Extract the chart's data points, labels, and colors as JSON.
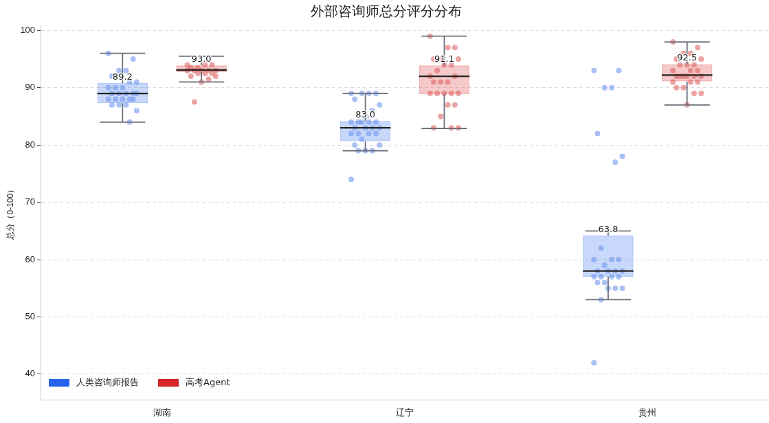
{
  "chart_data": {
    "type": "box",
    "title": "外部咨询师总分评分分布",
    "ylabel": "总分（0-100）",
    "categories": [
      "湖南",
      "辽宁",
      "贵州"
    ],
    "ylim": [
      35.5,
      101
    ],
    "yticks": [
      40,
      50,
      60,
      70,
      80,
      90,
      100
    ],
    "grid": "y",
    "legend": "bottom left",
    "line_style": "dashed",
    "series": [
      {
        "name": "人类咨询师报告",
        "color": "#2563eb",
        "value_labels": [
          "89.2",
          "83.0",
          "63.8"
        ],
        "boxes": [
          {
            "low": 84,
            "q1": 87.3,
            "median": 89,
            "q3": 90.8,
            "high": 96
          },
          {
            "low": 79,
            "q1": 80.7,
            "median": 83,
            "q3": 84.2,
            "high": 89
          },
          {
            "low": 53,
            "q1": 57,
            "median": 58,
            "q3": 64.2,
            "high": 65
          }
        ]
      },
      {
        "name": "高考Agent",
        "color": "#d62728",
        "value_labels": [
          "93.0",
          "91.1",
          "92.5"
        ],
        "boxes": [
          {
            "low": 91,
            "q1": 92.7,
            "median": 93.1,
            "q3": 93.9,
            "high": 95.5
          },
          {
            "low": 82.9,
            "q1": 88.9,
            "median": 92,
            "q3": 93.9,
            "high": 99
          },
          {
            "low": 87,
            "q1": 91.1,
            "median": 92.2,
            "q3": 94.1,
            "high": 98
          }
        ]
      },
      {
        "type": "scatter",
        "color": "#6f97ee",
        "x": [
          "湖南",
          "湖南",
          "湖南",
          "湖南",
          "湖南",
          "湖南",
          "湖南",
          "湖南",
          "湖南",
          "湖南",
          "湖南",
          "湖南",
          "湖南",
          "湖南",
          "湖南",
          "湖南",
          "湖南",
          "湖南",
          "湖南",
          "湖南",
          "湖南",
          "湖南",
          "湖南",
          "湖南",
          "湖南",
          "辽宁",
          "辽宁",
          "辽宁",
          "辽宁",
          "辽宁",
          "辽宁",
          "辽宁",
          "辽宁",
          "辽宁",
          "辽宁",
          "辽宁",
          "辽宁",
          "辽宁",
          "辽宁",
          "辽宁",
          "辽宁",
          "辽宁",
          "辽宁",
          "辽宁",
          "辽宁",
          "辽宁",
          "辽宁",
          "辽宁",
          "辽宁",
          "辽宁",
          "辽宁",
          "辽宁",
          "辽宁",
          "贵州",
          "贵州",
          "贵州",
          "贵州",
          "贵州",
          "贵州",
          "贵州",
          "贵州",
          "贵州",
          "贵州",
          "贵州",
          "贵州",
          "贵州",
          "贵州",
          "贵州",
          "贵州",
          "贵州",
          "贵州",
          "贵州",
          "贵州",
          "贵州",
          "贵州",
          "贵州",
          "贵州",
          "贵州",
          "贵州",
          "贵州",
          "贵州"
        ],
        "values": [
          96,
          95,
          93,
          93,
          92,
          91,
          91,
          90,
          90,
          90,
          89,
          89,
          89,
          89,
          89,
          88,
          88,
          88,
          88,
          88,
          87,
          87,
          87,
          86,
          84,
          89,
          89,
          89,
          89,
          88,
          87,
          86,
          85,
          84,
          84,
          84,
          84,
          84,
          83,
          83,
          83,
          83,
          82,
          82,
          82,
          82,
          81,
          80,
          80,
          79,
          79,
          79,
          74,
          93,
          93,
          90,
          90,
          82,
          78,
          77,
          65,
          62,
          60,
          60,
          60,
          59,
          58,
          58,
          58,
          58,
          57,
          57,
          57,
          57,
          56,
          56,
          55,
          55,
          55,
          53,
          42
        ]
      },
      {
        "type": "scatter",
        "color": "#e06666",
        "x": [
          "湖南",
          "湖南",
          "湖南",
          "湖南",
          "湖南",
          "湖南",
          "湖南",
          "湖南",
          "湖南",
          "湖南",
          "湖南",
          "湖南",
          "湖南",
          "湖南",
          "湖南",
          "湖南",
          "湖南",
          "湖南",
          "辽宁",
          "辽宁",
          "辽宁",
          "辽宁",
          "辽宁",
          "辽宁",
          "辽宁",
          "辽宁",
          "辽宁",
          "辽宁",
          "辽宁",
          "辽宁",
          "辽宁",
          "辽宁",
          "辽宁",
          "辽宁",
          "辽宁",
          "辽宁",
          "辽宁",
          "辽宁",
          "辽宁",
          "辽宁",
          "辽宁",
          "辽宁",
          "辽宁",
          "贵州",
          "贵州",
          "贵州",
          "贵州",
          "贵州",
          "贵州",
          "贵州",
          "贵州",
          "贵州",
          "贵州",
          "贵州",
          "贵州",
          "贵州",
          "贵州",
          "贵州",
          "贵州",
          "贵州",
          "贵州",
          "贵州",
          "贵州",
          "贵州",
          "贵州",
          "贵州",
          "贵州",
          "贵州",
          "贵州"
        ],
        "values": [
          94,
          94,
          94,
          93.5,
          93.5,
          93,
          93,
          93,
          93,
          93,
          92.5,
          92.5,
          92.5,
          92,
          92,
          91.5,
          91,
          87.5,
          99,
          97,
          97,
          95,
          95,
          95,
          94,
          94,
          93,
          92,
          92,
          91,
          91,
          91,
          89,
          89,
          89,
          89,
          89,
          87,
          87,
          85,
          83,
          83,
          83,
          98,
          97,
          96,
          96,
          95,
          95,
          94,
          94,
          94,
          93,
          93,
          93,
          92,
          92,
          92,
          92,
          92,
          92,
          91,
          91,
          91,
          90,
          90,
          89,
          89,
          87
        ]
      }
    ]
  }
}
